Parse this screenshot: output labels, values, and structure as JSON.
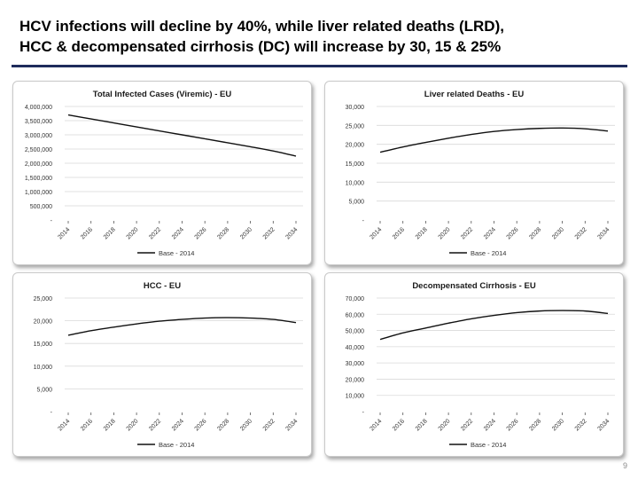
{
  "slide": {
    "title_line1": "HCV infections will decline by 40%, while liver related deaths (LRD),",
    "title_line2": "HCC & decompensated cirrhosis (DC) will increase by 30, 15 & 25%",
    "page_number": "9"
  },
  "colors": {
    "title_rule": "#1f2c5c",
    "series_line": "#111111",
    "grid": "#d9d9d9"
  },
  "chart_data": [
    {
      "type": "line",
      "title": "Total Infected Cases (Viremic) - EU",
      "ylim": [
        0,
        4000000
      ],
      "yticks": [
        0,
        500000,
        1000000,
        1500000,
        2000000,
        2500000,
        3000000,
        3500000,
        4000000
      ],
      "ytick_labels": [
        "-",
        "500,000",
        "1,000,000",
        "1,500,000",
        "2,000,000",
        "2,500,000",
        "3,000,000",
        "3,500,000",
        "4,000,000"
      ],
      "x_tick_labels": [
        "2014",
        "2016",
        "2018",
        "2020",
        "2022",
        "2024",
        "2026",
        "2028",
        "2030",
        "2032",
        "2034"
      ],
      "x_start": 2014,
      "x_end": 2034,
      "legend": "Base - 2014",
      "series": [
        {
          "name": "Base - 2014",
          "x": [
            2014,
            2016,
            2018,
            2020,
            2022,
            2024,
            2026,
            2028,
            2030,
            2032,
            2034
          ],
          "values": [
            3700000,
            3560000,
            3420000,
            3280000,
            3140000,
            3000000,
            2860000,
            2720000,
            2580000,
            2430000,
            2250000
          ]
        }
      ]
    },
    {
      "type": "line",
      "title": "Liver related Deaths - EU",
      "ylim": [
        0,
        30000
      ],
      "yticks": [
        0,
        5000,
        10000,
        15000,
        20000,
        25000,
        30000
      ],
      "ytick_labels": [
        "-",
        "5,000",
        "10,000",
        "15,000",
        "20,000",
        "25,000",
        "30,000"
      ],
      "x_tick_labels": [
        "2014",
        "2016",
        "2018",
        "2020",
        "2022",
        "2024",
        "2026",
        "2028",
        "2030",
        "2032",
        "2034"
      ],
      "x_start": 2014,
      "x_end": 2034,
      "legend": "Base - 2014",
      "series": [
        {
          "name": "Base - 2014",
          "x": [
            2014,
            2016,
            2018,
            2020,
            2022,
            2024,
            2026,
            2028,
            2030,
            2032,
            2034
          ],
          "values": [
            17900,
            19300,
            20500,
            21600,
            22600,
            23400,
            23900,
            24200,
            24300,
            24100,
            23500
          ]
        }
      ]
    },
    {
      "type": "line",
      "title": "HCC - EU",
      "ylim": [
        0,
        25000
      ],
      "yticks": [
        0,
        5000,
        10000,
        15000,
        20000,
        25000
      ],
      "ytick_labels": [
        "-",
        "5,000",
        "10,000",
        "15,000",
        "20,000",
        "25,000"
      ],
      "x_tick_labels": [
        "2014",
        "2016",
        "2018",
        "2020",
        "2022",
        "2024",
        "2026",
        "2028",
        "2030",
        "2032",
        "2034"
      ],
      "x_start": 2014,
      "x_end": 2034,
      "legend": "Base - 2014",
      "series": [
        {
          "name": "Base - 2014",
          "x": [
            2014,
            2016,
            2018,
            2020,
            2022,
            2024,
            2026,
            2028,
            2030,
            2032,
            2034
          ],
          "values": [
            16800,
            17800,
            18600,
            19300,
            19900,
            20300,
            20600,
            20700,
            20600,
            20300,
            19600
          ]
        }
      ]
    },
    {
      "type": "line",
      "title": "Decompensated Cirrhosis - EU",
      "ylim": [
        0,
        70000
      ],
      "yticks": [
        0,
        10000,
        20000,
        30000,
        40000,
        50000,
        60000,
        70000
      ],
      "ytick_labels": [
        "-",
        "10,000",
        "20,000",
        "30,000",
        "40,000",
        "50,000",
        "60,000",
        "70,000"
      ],
      "x_tick_labels": [
        "2014",
        "2016",
        "2018",
        "2020",
        "2022",
        "2024",
        "2026",
        "2028",
        "2030",
        "2032",
        "2034"
      ],
      "x_start": 2014,
      "x_end": 2034,
      "legend": "Base - 2014",
      "series": [
        {
          "name": "Base - 2014",
          "x": [
            2014,
            2016,
            2018,
            2020,
            2022,
            2024,
            2026,
            2028,
            2030,
            2032,
            2034
          ],
          "values": [
            44500,
            48500,
            51500,
            54500,
            57200,
            59300,
            61000,
            62000,
            62300,
            62000,
            60500
          ]
        }
      ]
    }
  ]
}
